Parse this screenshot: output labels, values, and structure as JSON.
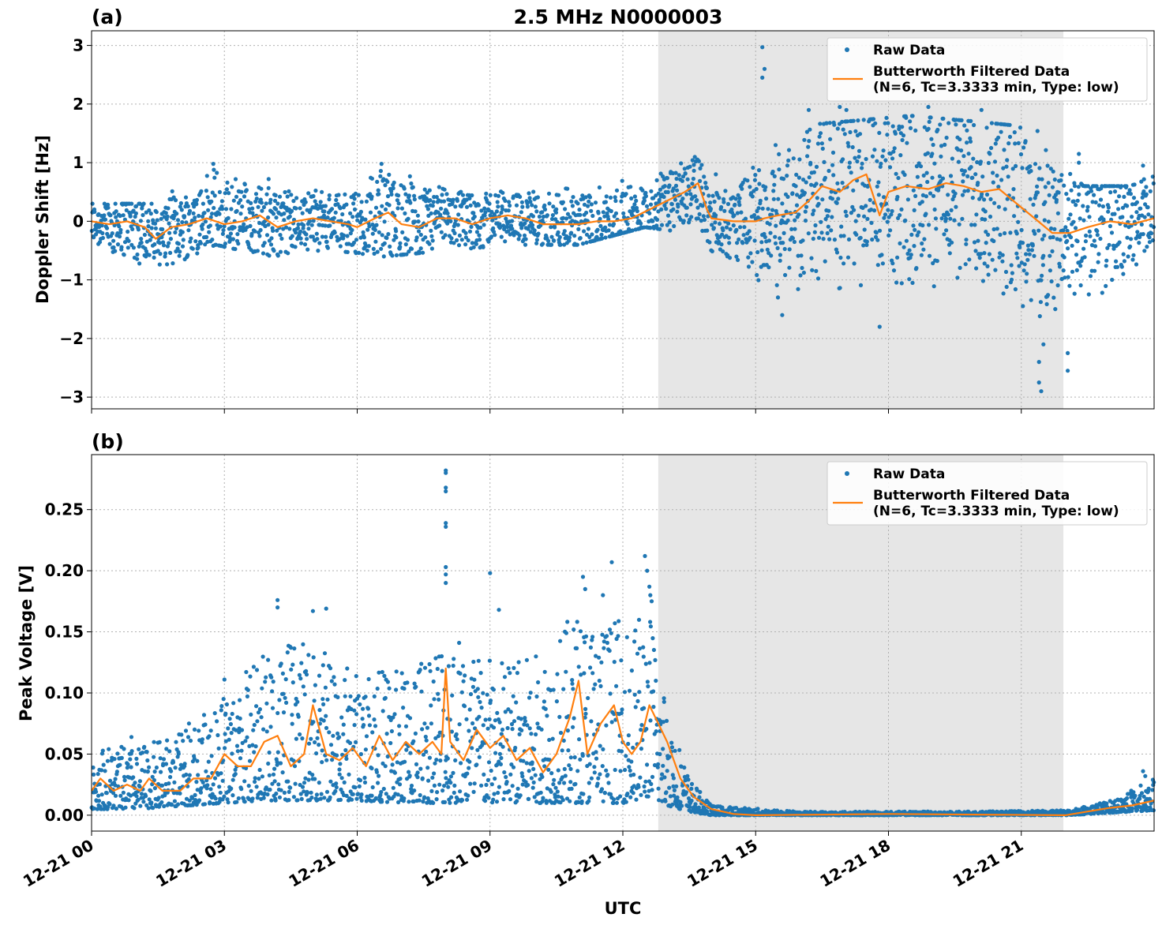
{
  "title": "2.5 MHz N0000003",
  "xlabel": "UTC",
  "x_tick_labels": [
    "12-21 00",
    "12-21 03",
    "12-21 06",
    "12-21 09",
    "12-21 12",
    "12-21 15",
    "12-21 18",
    "12-21 21"
  ],
  "colors": {
    "raw": "#1f77b4",
    "filtered": "#ff7f0e",
    "shade": "#e6e6e6",
    "grid": "#b0b0b0"
  },
  "legend": {
    "raw_label": "Raw Data",
    "filtered_label_line1": "Butterworth Filtered Data",
    "filtered_label_line2": "(N=6, Tc=3.3333 min, Type: low)"
  },
  "chart_data": [
    {
      "type": "scatter",
      "panel_label": "(a)",
      "ylabel": "Doppler Shift [Hz]",
      "xlim_hours": [
        0,
        24
      ],
      "ylim": [
        -3.2,
        3.25
      ],
      "y_ticks": [
        -3,
        -2,
        -1,
        0,
        1,
        2,
        3
      ],
      "y_tick_labels": [
        "−3",
        "−2",
        "−1",
        "0",
        "1",
        "2",
        "3"
      ],
      "grid": true,
      "legend_position": "top-right",
      "shaded_interval_hours": [
        12.8,
        21.95
      ],
      "series": [
        {
          "name": "Raw Data",
          "style": "points",
          "envelope": [
            {
              "hour": 0.0,
              "low": -0.5,
              "high": 0.3
            },
            {
              "hour": 1.4,
              "low": -0.9,
              "high": 0.3
            },
            {
              "hour": 2.8,
              "low": -0.4,
              "high": 1.0
            },
            {
              "hour": 4.0,
              "low": -0.6,
              "high": 0.7
            },
            {
              "hour": 5.5,
              "low": -0.5,
              "high": 0.5
            },
            {
              "hour": 6.6,
              "low": -0.6,
              "high": 1.0
            },
            {
              "hour": 8.0,
              "low": -0.5,
              "high": 0.6
            },
            {
              "hour": 9.5,
              "low": -0.4,
              "high": 0.6
            },
            {
              "hour": 11.0,
              "low": -0.4,
              "high": 0.6
            },
            {
              "hour": 12.5,
              "low": -0.1,
              "high": 0.8
            },
            {
              "hour": 13.5,
              "low": -0.2,
              "high": 1.2
            },
            {
              "hour": 14.5,
              "low": -0.8,
              "high": 0.4
            },
            {
              "hour": 15.5,
              "low": -1.3,
              "high": 1.6
            },
            {
              "hour": 17.0,
              "low": -1.3,
              "high": 1.7
            },
            {
              "hour": 18.5,
              "low": -1.2,
              "high": 1.8
            },
            {
              "hour": 20.0,
              "low": -1.3,
              "high": 1.7
            },
            {
              "hour": 21.3,
              "low": -1.8,
              "high": 1.6
            },
            {
              "hour": 22.4,
              "low": -1.5,
              "high": 0.6
            },
            {
              "hour": 23.4,
              "low": -1.0,
              "high": 0.6
            },
            {
              "hour": 24.0,
              "low": -0.7,
              "high": 0.9
            }
          ],
          "outliers": [
            {
              "hour": 2.75,
              "y": 0.98
            },
            {
              "hour": 4.0,
              "y": 0.72
            },
            {
              "hour": 6.55,
              "y": 0.98
            },
            {
              "hour": 15.15,
              "y": 2.97
            },
            {
              "hour": 15.15,
              "y": 2.45
            },
            {
              "hour": 15.2,
              "y": 2.6
            },
            {
              "hour": 14.1,
              "y": 0.8
            },
            {
              "hour": 15.45,
              "y": 1.3
            },
            {
              "hour": 15.6,
              "y": -1.6
            },
            {
              "hour": 16.2,
              "y": 1.9
            },
            {
              "hour": 16.9,
              "y": 1.95
            },
            {
              "hour": 17.05,
              "y": 1.9
            },
            {
              "hour": 17.8,
              "y": -1.8
            },
            {
              "hour": 18.9,
              "y": 1.95
            },
            {
              "hour": 20.1,
              "y": 1.9
            },
            {
              "hour": 21.4,
              "y": -2.4
            },
            {
              "hour": 21.45,
              "y": -2.9
            },
            {
              "hour": 21.4,
              "y": -2.75
            },
            {
              "hour": 21.5,
              "y": -2.1
            },
            {
              "hour": 22.05,
              "y": -2.25
            },
            {
              "hour": 22.05,
              "y": -2.55
            },
            {
              "hour": 22.3,
              "y": 1.15
            },
            {
              "hour": 22.3,
              "y": 1.0
            },
            {
              "hour": 23.75,
              "y": 0.95
            }
          ]
        },
        {
          "name": "Butterworth Filtered Data\n(N=6, Tc=3.3333 min, Type: low)",
          "style": "line",
          "points": [
            [
              0.0,
              0.0
            ],
            [
              0.4,
              -0.05
            ],
            [
              0.8,
              0.0
            ],
            [
              1.2,
              -0.1
            ],
            [
              1.45,
              -0.3
            ],
            [
              1.8,
              -0.1
            ],
            [
              2.2,
              -0.05
            ],
            [
              2.6,
              0.05
            ],
            [
              3.0,
              -0.05
            ],
            [
              3.4,
              0.0
            ],
            [
              3.8,
              0.1
            ],
            [
              4.2,
              -0.1
            ],
            [
              4.6,
              0.0
            ],
            [
              5.0,
              0.05
            ],
            [
              5.4,
              0.0
            ],
            [
              5.8,
              -0.05
            ],
            [
              6.0,
              -0.1
            ],
            [
              6.4,
              0.05
            ],
            [
              6.7,
              0.15
            ],
            [
              7.0,
              -0.05
            ],
            [
              7.4,
              -0.1
            ],
            [
              7.8,
              0.05
            ],
            [
              8.2,
              0.05
            ],
            [
              8.6,
              -0.05
            ],
            [
              9.0,
              0.05
            ],
            [
              9.4,
              0.1
            ],
            [
              9.8,
              0.05
            ],
            [
              10.2,
              -0.05
            ],
            [
              10.6,
              -0.05
            ],
            [
              11.0,
              -0.05
            ],
            [
              11.4,
              0.0
            ],
            [
              11.8,
              0.0
            ],
            [
              12.2,
              0.05
            ],
            [
              12.6,
              0.2
            ],
            [
              13.0,
              0.35
            ],
            [
              13.4,
              0.5
            ],
            [
              13.7,
              0.65
            ],
            [
              13.9,
              0.2
            ],
            [
              14.0,
              0.05
            ],
            [
              14.5,
              0.0
            ],
            [
              15.0,
              0.0
            ],
            [
              15.2,
              0.05
            ],
            [
              15.5,
              0.1
            ],
            [
              15.9,
              0.15
            ],
            [
              16.2,
              0.35
            ],
            [
              16.5,
              0.6
            ],
            [
              16.9,
              0.5
            ],
            [
              17.2,
              0.7
            ],
            [
              17.5,
              0.8
            ],
            [
              17.8,
              0.1
            ],
            [
              18.0,
              0.5
            ],
            [
              18.4,
              0.6
            ],
            [
              18.9,
              0.55
            ],
            [
              19.3,
              0.65
            ],
            [
              19.7,
              0.6
            ],
            [
              20.1,
              0.5
            ],
            [
              20.5,
              0.55
            ],
            [
              20.9,
              0.3
            ],
            [
              21.3,
              0.05
            ],
            [
              21.7,
              -0.2
            ],
            [
              22.1,
              -0.2
            ],
            [
              22.5,
              -0.1
            ],
            [
              23.0,
              0.0
            ],
            [
              23.5,
              -0.05
            ],
            [
              24.0,
              0.05
            ]
          ]
        }
      ]
    },
    {
      "type": "scatter",
      "panel_label": "(b)",
      "ylabel": "Peak Voltage [V]",
      "xlim_hours": [
        0,
        24
      ],
      "ylim": [
        -0.013,
        0.295
      ],
      "y_ticks": [
        0.0,
        0.05,
        0.1,
        0.15,
        0.2,
        0.25
      ],
      "y_tick_labels": [
        "0.00",
        "0.05",
        "0.10",
        "0.15",
        "0.20",
        "0.25"
      ],
      "grid": true,
      "legend_position": "top-right",
      "shaded_interval_hours": [
        12.8,
        21.95
      ],
      "series": [
        {
          "name": "Raw Data",
          "style": "points",
          "envelope": [
            {
              "hour": 0.0,
              "low": 0.005,
              "high": 0.058
            },
            {
              "hour": 1.0,
              "low": 0.005,
              "high": 0.055
            },
            {
              "hour": 2.2,
              "low": 0.008,
              "high": 0.07
            },
            {
              "hour": 3.0,
              "low": 0.01,
              "high": 0.1
            },
            {
              "hour": 4.0,
              "low": 0.012,
              "high": 0.14
            },
            {
              "hour": 5.0,
              "low": 0.012,
              "high": 0.14
            },
            {
              "hour": 6.0,
              "low": 0.012,
              "high": 0.12
            },
            {
              "hour": 7.0,
              "low": 0.01,
              "high": 0.12
            },
            {
              "hour": 8.0,
              "low": 0.01,
              "high": 0.16
            },
            {
              "hour": 9.0,
              "low": 0.01,
              "high": 0.13
            },
            {
              "hour": 10.0,
              "low": 0.01,
              "high": 0.13
            },
            {
              "hour": 11.0,
              "low": 0.01,
              "high": 0.17
            },
            {
              "hour": 12.0,
              "low": 0.01,
              "high": 0.16
            },
            {
              "hour": 12.6,
              "low": 0.015,
              "high": 0.17
            },
            {
              "hour": 13.0,
              "low": 0.008,
              "high": 0.095
            },
            {
              "hour": 13.5,
              "low": 0.003,
              "high": 0.03
            },
            {
              "hour": 14.0,
              "low": 0.0,
              "high": 0.008
            },
            {
              "hour": 16.0,
              "low": 0.0,
              "high": 0.003
            },
            {
              "hour": 20.0,
              "low": 0.0,
              "high": 0.003
            },
            {
              "hour": 22.0,
              "low": 0.0,
              "high": 0.004
            },
            {
              "hour": 23.0,
              "low": 0.002,
              "high": 0.012
            },
            {
              "hour": 24.0,
              "low": 0.004,
              "high": 0.03
            }
          ],
          "outliers": [
            {
              "hour": 8.0,
              "y": 0.282
            },
            {
              "hour": 8.0,
              "y": 0.28
            },
            {
              "hour": 8.0,
              "y": 0.268
            },
            {
              "hour": 8.0,
              "y": 0.265
            },
            {
              "hour": 8.0,
              "y": 0.239
            },
            {
              "hour": 8.0,
              "y": 0.236
            },
            {
              "hour": 8.0,
              "y": 0.203
            },
            {
              "hour": 8.0,
              "y": 0.197
            },
            {
              "hour": 8.0,
              "y": 0.19
            },
            {
              "hour": 9.0,
              "y": 0.198
            },
            {
              "hour": 4.2,
              "y": 0.176
            },
            {
              "hour": 4.2,
              "y": 0.17
            },
            {
              "hour": 5.0,
              "y": 0.167
            },
            {
              "hour": 5.3,
              "y": 0.169
            },
            {
              "hour": 9.2,
              "y": 0.168
            },
            {
              "hour": 11.1,
              "y": 0.195
            },
            {
              "hour": 11.15,
              "y": 0.185
            },
            {
              "hour": 11.55,
              "y": 0.18
            },
            {
              "hour": 11.75,
              "y": 0.207
            },
            {
              "hour": 12.5,
              "y": 0.212
            },
            {
              "hour": 12.55,
              "y": 0.2
            },
            {
              "hour": 12.6,
              "y": 0.187
            },
            {
              "hour": 12.62,
              "y": 0.18
            },
            {
              "hour": 12.65,
              "y": 0.175
            },
            {
              "hour": 3.0,
              "y": 0.111
            },
            {
              "hour": 2.2,
              "y": 0.075
            },
            {
              "hour": 0.9,
              "y": 0.064
            },
            {
              "hour": 23.75,
              "y": 0.036
            },
            {
              "hour": 23.8,
              "y": 0.032
            }
          ]
        },
        {
          "name": "Butterworth Filtered Data\n(N=6, Tc=3.3333 min, Type: low)",
          "style": "line",
          "points": [
            [
              0.0,
              0.02
            ],
            [
              0.2,
              0.03
            ],
            [
              0.5,
              0.02
            ],
            [
              0.8,
              0.025
            ],
            [
              1.1,
              0.02
            ],
            [
              1.3,
              0.03
            ],
            [
              1.6,
              0.02
            ],
            [
              2.0,
              0.02
            ],
            [
              2.3,
              0.03
            ],
            [
              2.7,
              0.03
            ],
            [
              3.0,
              0.05
            ],
            [
              3.3,
              0.04
            ],
            [
              3.6,
              0.04
            ],
            [
              3.9,
              0.06
            ],
            [
              4.2,
              0.065
            ],
            [
              4.5,
              0.04
            ],
            [
              4.8,
              0.05
            ],
            [
              5.0,
              0.09
            ],
            [
              5.3,
              0.05
            ],
            [
              5.6,
              0.045
            ],
            [
              5.9,
              0.055
            ],
            [
              6.2,
              0.04
            ],
            [
              6.5,
              0.065
            ],
            [
              6.8,
              0.045
            ],
            [
              7.1,
              0.06
            ],
            [
              7.4,
              0.05
            ],
            [
              7.7,
              0.06
            ],
            [
              7.9,
              0.05
            ],
            [
              8.0,
              0.12
            ],
            [
              8.1,
              0.06
            ],
            [
              8.4,
              0.045
            ],
            [
              8.7,
              0.07
            ],
            [
              9.0,
              0.055
            ],
            [
              9.3,
              0.065
            ],
            [
              9.6,
              0.045
            ],
            [
              9.9,
              0.055
            ],
            [
              10.2,
              0.035
            ],
            [
              10.5,
              0.05
            ],
            [
              10.8,
              0.08
            ],
            [
              11.0,
              0.11
            ],
            [
              11.2,
              0.05
            ],
            [
              11.5,
              0.075
            ],
            [
              11.8,
              0.09
            ],
            [
              12.0,
              0.06
            ],
            [
              12.2,
              0.05
            ],
            [
              12.4,
              0.06
            ],
            [
              12.6,
              0.09
            ],
            [
              12.8,
              0.075
            ],
            [
              13.0,
              0.06
            ],
            [
              13.3,
              0.03
            ],
            [
              13.6,
              0.015
            ],
            [
              14.0,
              0.005
            ],
            [
              14.5,
              0.001
            ],
            [
              15.0,
              0.0
            ],
            [
              18.0,
              0.001
            ],
            [
              22.0,
              0.0
            ],
            [
              22.5,
              0.003
            ],
            [
              23.0,
              0.006
            ],
            [
              23.5,
              0.008
            ],
            [
              24.0,
              0.012
            ]
          ]
        }
      ]
    }
  ]
}
